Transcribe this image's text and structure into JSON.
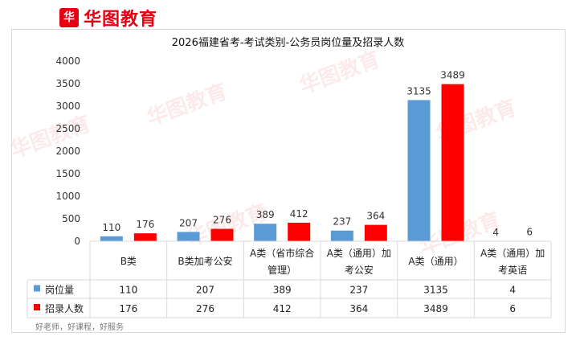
{
  "brand": {
    "logo_mark": "华",
    "logo_text": "华图教育",
    "watermark": "华图教育"
  },
  "footer": "好老师，好课程，好服务",
  "colors": {
    "series1": "#5b9bd5",
    "series2": "#ff0000",
    "grid": "#d9d9d9"
  },
  "chart_data": {
    "type": "bar",
    "title": "2026福建省考-考试类别-公务员岗位量及招录人数",
    "categories": [
      [
        "B类"
      ],
      [
        "B类加考公安"
      ],
      [
        "A类（省市综合",
        "管理）"
      ],
      [
        "A类（通用）加",
        "考公安"
      ],
      [
        "A类（通用）"
      ],
      [
        "A类（通用）加",
        "考英语"
      ]
    ],
    "series": [
      {
        "name": "岗位量",
        "values": [
          110,
          207,
          389,
          237,
          3135,
          4
        ]
      },
      {
        "name": "招录人数",
        "values": [
          176,
          276,
          412,
          364,
          3489,
          6
        ]
      }
    ],
    "ylim": [
      0,
      4000
    ],
    "yticks": [
      0,
      500,
      1000,
      1500,
      2000,
      2500,
      3000,
      3500,
      4000
    ],
    "legend": "data-table"
  }
}
